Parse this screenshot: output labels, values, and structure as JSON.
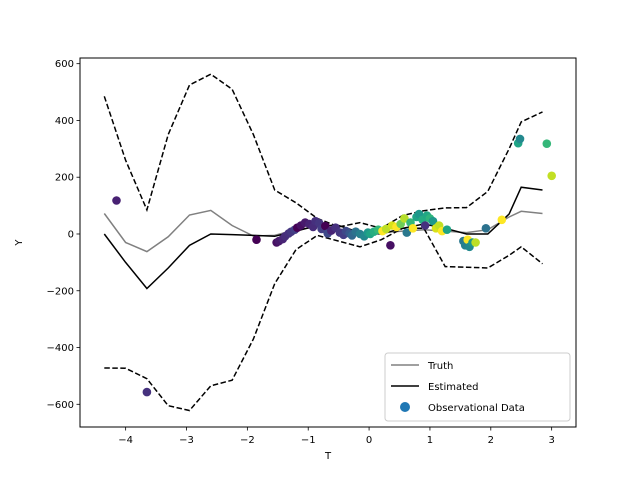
{
  "chart_data": {
    "type": "line",
    "xlabel": "T",
    "ylabel": "Y",
    "xlim": [
      -4.75,
      3.4
    ],
    "ylim": [
      -680,
      620
    ],
    "xticks": [
      -4,
      -3,
      -2,
      -1,
      0,
      1,
      2,
      3
    ],
    "yticks": [
      -600,
      -400,
      -200,
      0,
      200,
      400,
      600
    ],
    "grid": false,
    "legend_position": "lower-right",
    "legend": [
      "Truth",
      "Estimated",
      "Observational Data"
    ],
    "series": [
      {
        "name": "Truth",
        "color": "#808080",
        "style": "solid",
        "x": [
          -4.35,
          -4.0,
          -3.65,
          -3.3,
          -2.95,
          -2.6,
          -2.25,
          -1.9,
          -1.55,
          -1.2,
          -0.85,
          -0.5,
          -0.15,
          0.2,
          0.55,
          0.9,
          1.25,
          1.6,
          1.95,
          2.3,
          2.5,
          2.85
        ],
        "y": [
          72,
          -30,
          -62,
          -10,
          67,
          83,
          30,
          -7,
          -5,
          15,
          25,
          15,
          5,
          5,
          10,
          15,
          10,
          5,
          15,
          60,
          80,
          72
        ]
      },
      {
        "name": "Estimated",
        "color": "#000000",
        "style": "solid",
        "x": [
          -4.35,
          -4.0,
          -3.65,
          -3.3,
          -2.95,
          -2.6,
          -2.25,
          -1.9,
          -1.55,
          -1.2,
          -0.85,
          -0.5,
          -0.15,
          0.2,
          0.55,
          0.9,
          1.25,
          1.6,
          1.95,
          2.3,
          2.5,
          2.85
        ],
        "y": [
          0,
          -100,
          -192,
          -120,
          -40,
          0,
          -2,
          -5,
          -8,
          10,
          30,
          30,
          5,
          0,
          20,
          35,
          20,
          0,
          0,
          70,
          165,
          155
        ]
      },
      {
        "name": "",
        "color": "#000000",
        "style": "dashed",
        "x": [
          -4.35,
          -4.0,
          -3.65,
          -3.3,
          -2.95,
          -2.6,
          -2.25,
          -1.9,
          -1.55,
          -1.2,
          -0.85,
          -0.5,
          -0.15,
          0.2,
          0.55,
          0.9,
          1.25,
          1.6,
          1.95,
          2.3,
          2.5,
          2.85
        ],
        "y": [
          485,
          260,
          85,
          350,
          525,
          563,
          510,
          350,
          155,
          110,
          55,
          25,
          40,
          20,
          65,
          82,
          92,
          93,
          150,
          300,
          395,
          430
        ]
      },
      {
        "name": "",
        "color": "#000000",
        "style": "dashed",
        "x": [
          -4.35,
          -4.0,
          -3.65,
          -3.3,
          -2.95,
          -2.6,
          -2.25,
          -1.9,
          -1.55,
          -1.2,
          -0.85,
          -0.5,
          -0.15,
          0.2,
          0.55,
          0.9,
          1.25,
          1.6,
          1.95,
          2.3,
          2.5,
          2.85
        ],
        "y": [
          -472,
          -473,
          -510,
          -605,
          -622,
          -535,
          -515,
          -370,
          -175,
          -55,
          -5,
          -25,
          -45,
          -20,
          20,
          20,
          -115,
          -117,
          -120,
          -75,
          -45,
          -105
        ]
      }
    ],
    "scatter": {
      "name": "Observational Data",
      "legend_color": "#1f77b4",
      "points": [
        {
          "x": -4.15,
          "y": 118,
          "c": "#482173"
        },
        {
          "x": -3.65,
          "y": -557,
          "c": "#46327e"
        },
        {
          "x": -1.85,
          "y": -20,
          "c": "#440154"
        },
        {
          "x": -1.52,
          "y": -30,
          "c": "#471063"
        },
        {
          "x": -1.48,
          "y": -25,
          "c": "#481a6c"
        },
        {
          "x": -1.42,
          "y": -18,
          "c": "#482475"
        },
        {
          "x": -1.38,
          "y": -8,
          "c": "#472c7a"
        },
        {
          "x": -1.32,
          "y": 2,
          "c": "#46307e"
        },
        {
          "x": -1.28,
          "y": 8,
          "c": "#453781"
        },
        {
          "x": -1.22,
          "y": 15,
          "c": "#433e85"
        },
        {
          "x": -1.18,
          "y": 22,
          "c": "#440154"
        },
        {
          "x": -1.12,
          "y": 30,
          "c": "#471063"
        },
        {
          "x": -1.05,
          "y": 40,
          "c": "#481a6c"
        },
        {
          "x": -0.98,
          "y": 35,
          "c": "#482475"
        },
        {
          "x": -0.92,
          "y": 25,
          "c": "#472c7a"
        },
        {
          "x": -0.88,
          "y": 45,
          "c": "#46307e"
        },
        {
          "x": -0.82,
          "y": 38,
          "c": "#453781"
        },
        {
          "x": -0.78,
          "y": 18,
          "c": "#433e85"
        },
        {
          "x": -0.72,
          "y": 28,
          "c": "#440154"
        },
        {
          "x": -0.68,
          "y": 2,
          "c": "#3e4989"
        },
        {
          "x": -0.62,
          "y": 12,
          "c": "#482475"
        },
        {
          "x": -0.55,
          "y": 22,
          "c": "#46307e"
        },
        {
          "x": -0.48,
          "y": 5,
          "c": "#453781"
        },
        {
          "x": -0.42,
          "y": -3,
          "c": "#433e85"
        },
        {
          "x": -0.38,
          "y": 10,
          "c": "#3e4989"
        },
        {
          "x": -0.32,
          "y": 2,
          "c": "#38588c"
        },
        {
          "x": -0.28,
          "y": -5,
          "c": "#31688e"
        },
        {
          "x": -0.22,
          "y": 8,
          "c": "#2c728e"
        },
        {
          "x": -0.15,
          "y": 0,
          "c": "#27808e"
        },
        {
          "x": -0.08,
          "y": -8,
          "c": "#23898e"
        },
        {
          "x": -0.02,
          "y": 5,
          "c": "#1f988b"
        },
        {
          "x": 0.02,
          "y": 0,
          "c": "#20a486"
        },
        {
          "x": 0.08,
          "y": 8,
          "c": "#27ad81"
        },
        {
          "x": 0.15,
          "y": 15,
          "c": "#35b779"
        },
        {
          "x": 0.22,
          "y": 10,
          "c": "#fde725"
        },
        {
          "x": 0.28,
          "y": 18,
          "c": "#bddf26"
        },
        {
          "x": 0.35,
          "y": -40,
          "c": "#471063"
        },
        {
          "x": 0.38,
          "y": 30,
          "c": "#d8e219"
        },
        {
          "x": 0.45,
          "y": 25,
          "c": "#fde725"
        },
        {
          "x": 0.52,
          "y": 35,
          "c": "#6ece58"
        },
        {
          "x": 0.58,
          "y": 55,
          "c": "#b5de2b"
        },
        {
          "x": 0.62,
          "y": 5,
          "c": "#2a788e"
        },
        {
          "x": 0.68,
          "y": 40,
          "c": "#35b779"
        },
        {
          "x": 0.72,
          "y": 20,
          "c": "#fde725"
        },
        {
          "x": 0.78,
          "y": 60,
          "c": "#20a486"
        },
        {
          "x": 0.82,
          "y": 70,
          "c": "#1f988b"
        },
        {
          "x": 0.88,
          "y": 50,
          "c": "#25ab82"
        },
        {
          "x": 0.92,
          "y": 30,
          "c": "#46307e"
        },
        {
          "x": 0.95,
          "y": 65,
          "c": "#22a884"
        },
        {
          "x": 1.0,
          "y": 55,
          "c": "#2fb47c"
        },
        {
          "x": 1.05,
          "y": 45,
          "c": "#1f988b"
        },
        {
          "x": 1.1,
          "y": 20,
          "c": "#d8e219"
        },
        {
          "x": 1.15,
          "y": 30,
          "c": "#c2df23"
        },
        {
          "x": 1.2,
          "y": 10,
          "c": "#fde725"
        },
        {
          "x": 1.28,
          "y": 15,
          "c": "#20a486"
        },
        {
          "x": 1.55,
          "y": -25,
          "c": "#2a788e"
        },
        {
          "x": 1.58,
          "y": -40,
          "c": "#27808e"
        },
        {
          "x": 1.62,
          "y": -20,
          "c": "#fde725"
        },
        {
          "x": 1.65,
          "y": -45,
          "c": "#23898e"
        },
        {
          "x": 1.7,
          "y": -30,
          "c": "#1f988b"
        },
        {
          "x": 1.75,
          "y": -30,
          "c": "#bddf26"
        },
        {
          "x": 1.92,
          "y": 20,
          "c": "#2c728e"
        },
        {
          "x": 2.18,
          "y": 50,
          "c": "#fde725"
        },
        {
          "x": 2.45,
          "y": 320,
          "c": "#20a486"
        },
        {
          "x": 2.48,
          "y": 335,
          "c": "#23898e"
        },
        {
          "x": 2.92,
          "y": 318,
          "c": "#35b779"
        },
        {
          "x": 3.0,
          "y": 205,
          "c": "#c2df23"
        }
      ]
    }
  }
}
